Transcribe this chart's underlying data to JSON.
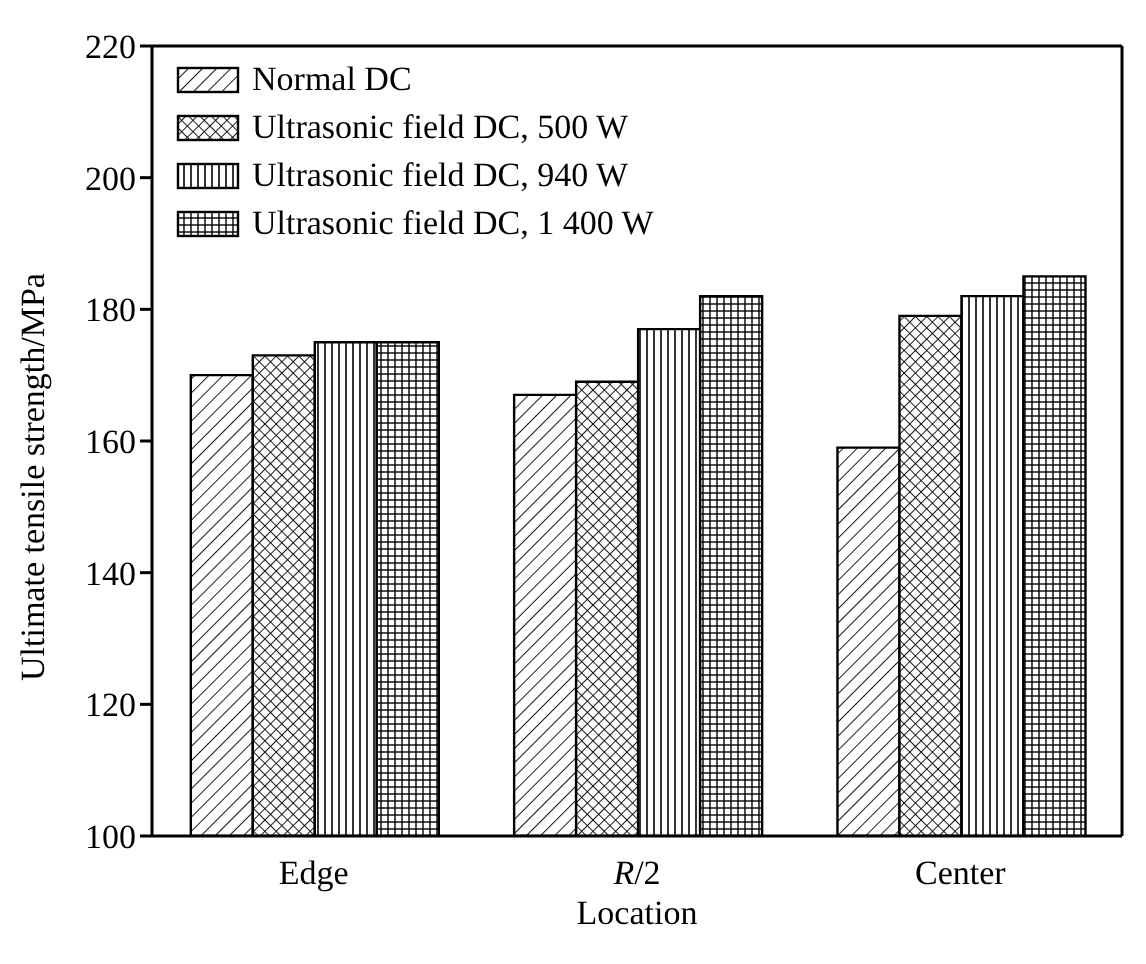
{
  "chart_data": {
    "type": "bar",
    "xlabel": "Location",
    "ylabel": "Ultimate tensile strength/MPa",
    "categories": [
      "Edge",
      "R/2",
      "Center"
    ],
    "series": [
      {
        "name": "Normal DC",
        "color": "#000000",
        "values": [
          170,
          167,
          159
        ]
      },
      {
        "name": "Ultrasonic field DC, 500 W",
        "color": "#000000",
        "values": [
          173,
          169,
          179
        ]
      },
      {
        "name": "Ultrasonic field DC, 940 W",
        "color": "#000000",
        "values": [
          175,
          177,
          182
        ]
      },
      {
        "name": "Ultrasonic field DC, 1 400 W",
        "color": "#000000",
        "values": [
          175,
          182,
          185
        ]
      }
    ],
    "ylim": [
      100,
      220
    ],
    "yticks": [
      100,
      120,
      140,
      160,
      180,
      200,
      220
    ],
    "legend": "top left"
  }
}
